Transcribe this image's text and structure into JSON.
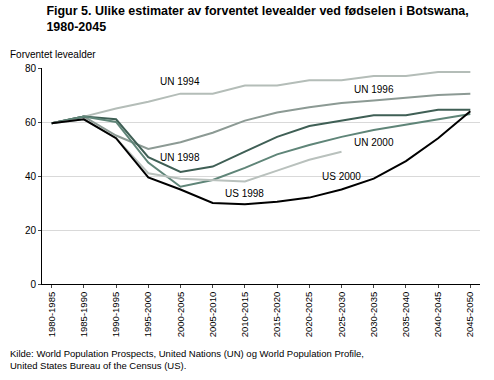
{
  "chart_data": {
    "type": "line",
    "title": "Figur 5. Ulike estimater av forventet levealder ved fødselen i Botswana, 1980-2045",
    "y_label": "Forventet levealder",
    "source": "Kilde: World Population Prospects, United Nations (UN) og World Population Profile, United States Bureau of the Census (US).",
    "categories": [
      "1980-1985",
      "1985-1990",
      "1990-1995",
      "1995-2000",
      "2000-2005",
      "2005-2010",
      "2010-2015",
      "2015-2020",
      "2020-2025",
      "2025-2030",
      "2030-2035",
      "2035-2040",
      "2040-2045",
      "2045-2050"
    ],
    "series": [
      {
        "name": "UN 1994",
        "color": "#b4bdb8",
        "values": [
          59.5,
          62,
          65,
          67.5,
          70.5,
          70.5,
          73.5,
          73.5,
          75.5,
          75.5,
          77,
          77,
          78.5,
          78.5
        ]
      },
      {
        "name": "UN 1996",
        "color": "#8c9a94",
        "values": [
          59.5,
          62,
          55,
          50,
          52.5,
          56,
          60.5,
          63.5,
          65.5,
          67,
          68,
          69,
          70,
          70.5
        ]
      },
      {
        "name": "UN 1998",
        "color": "#3f5f55",
        "values": [
          59.5,
          62,
          61,
          47,
          41.5,
          43.5,
          49,
          54.5,
          58.5,
          60.5,
          62.5,
          62.5,
          64.5,
          64.5
        ]
      },
      {
        "name": "UN 2000",
        "color": "#5f8578",
        "values": [
          59.5,
          62,
          60,
          45,
          36,
          38.5,
          43,
          48,
          51.5,
          54.5,
          57,
          59,
          61,
          63
        ]
      },
      {
        "name": "US 1998",
        "color": "#b9c1bd",
        "values": [
          59.5,
          61,
          54,
          41,
          39,
          38.5,
          38,
          42,
          46,
          49,
          null,
          null,
          null,
          null
        ]
      },
      {
        "name": "US 2000",
        "color": "#000000",
        "values": [
          59.5,
          61,
          54,
          39.5,
          35,
          30,
          29.5,
          30.5,
          32,
          35,
          39,
          45.5,
          54,
          64
        ]
      }
    ],
    "ylim": [
      0,
      80
    ],
    "yticks": [
      0,
      20,
      40,
      60,
      80
    ],
    "grid": true
  }
}
